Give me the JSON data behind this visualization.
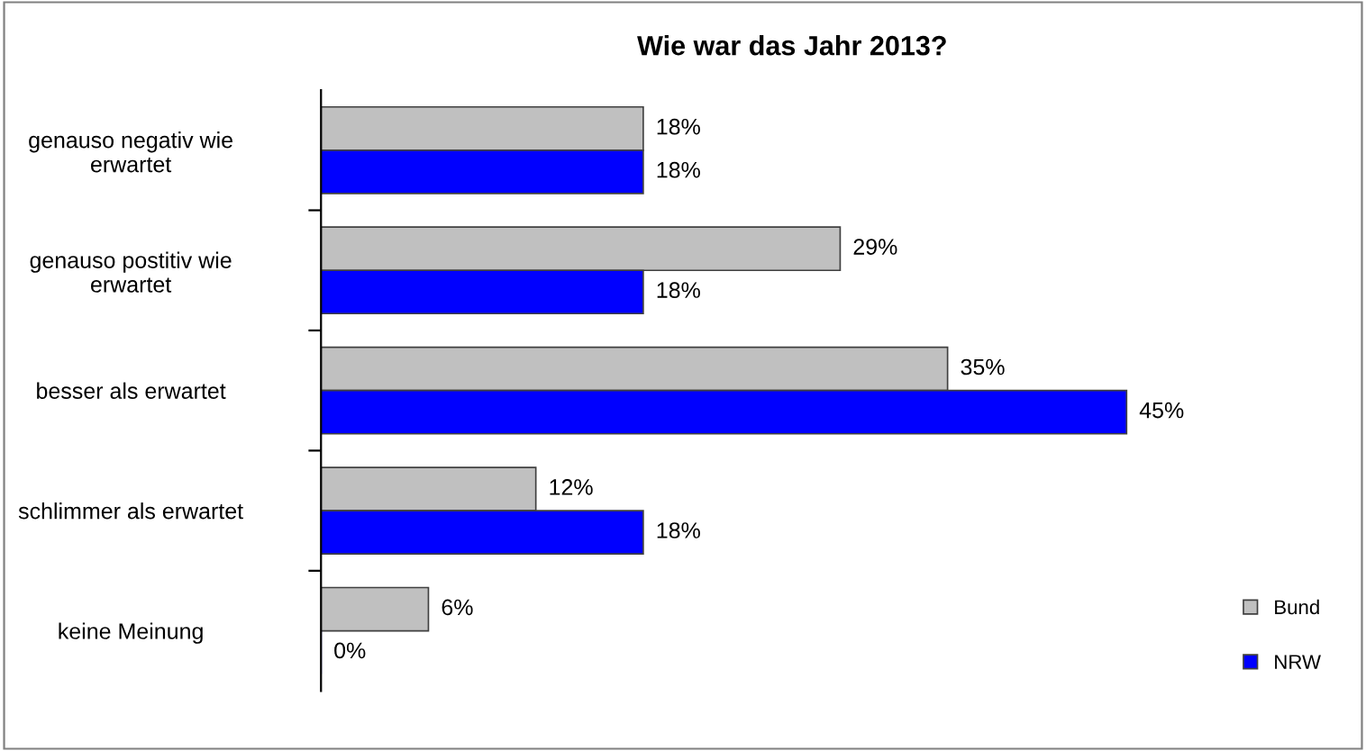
{
  "chart_data": {
    "type": "bar",
    "orientation": "horizontal",
    "title": "Wie war das Jahr 2013?",
    "categories": [
      "genauso negativ wie\nerwartet",
      "genauso postitiv wie\nerwartet",
      "besser als erwartet",
      "schlimmer als erwartet",
      "keine Meinung"
    ],
    "series": [
      {
        "name": "Bund",
        "color": "#c0c0c0",
        "values": [
          18,
          29,
          35,
          12,
          6
        ],
        "value_labels": [
          "18%",
          "29%",
          "35%",
          "12%",
          "6%"
        ]
      },
      {
        "name": "NRW",
        "color": "#0000ff",
        "values": [
          18,
          18,
          45,
          18,
          0
        ],
        "value_labels": [
          "18%",
          "18%",
          "45%",
          "18%",
          "0%"
        ]
      }
    ],
    "legend": "bottom right"
  }
}
